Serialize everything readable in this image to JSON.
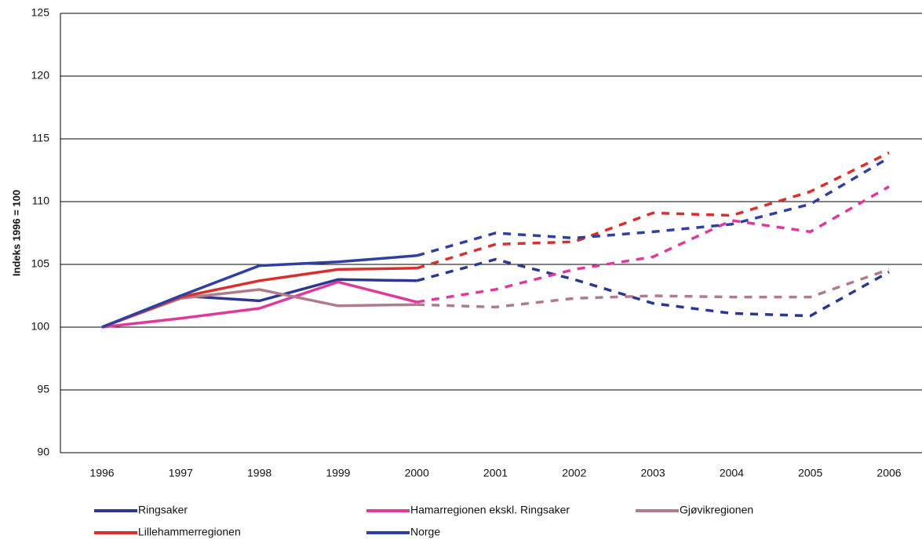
{
  "chart_data": {
    "type": "line",
    "y_label": "Indeks 1996 = 100",
    "categories": [
      "1996",
      "1997",
      "1998",
      "1999",
      "2000",
      "2001",
      "2002",
      "2003",
      "2004",
      "2005",
      "2006"
    ],
    "dashed_from": "2000",
    "series": [
      {
        "name": "Ringsaker",
        "color": "#2b3890",
        "values": [
          100,
          102.5,
          102.1,
          103.8,
          103.7,
          105.4,
          103.8,
          101.9,
          101.1,
          100.9,
          104.4
        ]
      },
      {
        "name": "Hamarregionen ekskl. Ringsaker",
        "color": "#e0399b",
        "values": [
          100,
          100.7,
          101.5,
          103.6,
          102.0,
          103.0,
          104.6,
          105.6,
          108.5,
          107.6,
          111.2
        ]
      },
      {
        "name": "Gjøvikregionen",
        "color": "#b07c8c",
        "values": [
          100,
          102.3,
          103.0,
          101.7,
          101.8,
          101.6,
          102.3,
          102.5,
          102.4,
          102.4,
          104.6
        ]
      },
      {
        "name": "Lillehammerregionen",
        "color": "#d8302f",
        "values": [
          100,
          102.4,
          103.7,
          104.6,
          104.7,
          106.6,
          106.8,
          109.1,
          108.9,
          110.8,
          113.9
        ]
      },
      {
        "name": "Norge",
        "color": "#3040a0",
        "values": [
          100,
          102.5,
          104.9,
          105.2,
          105.7,
          107.5,
          107.1,
          107.6,
          108.2,
          109.8,
          113.5
        ]
      }
    ],
    "ylim": [
      90,
      125
    ],
    "yticks": [
      90,
      95,
      100,
      105,
      110,
      115,
      120,
      125
    ],
    "grid": true
  }
}
